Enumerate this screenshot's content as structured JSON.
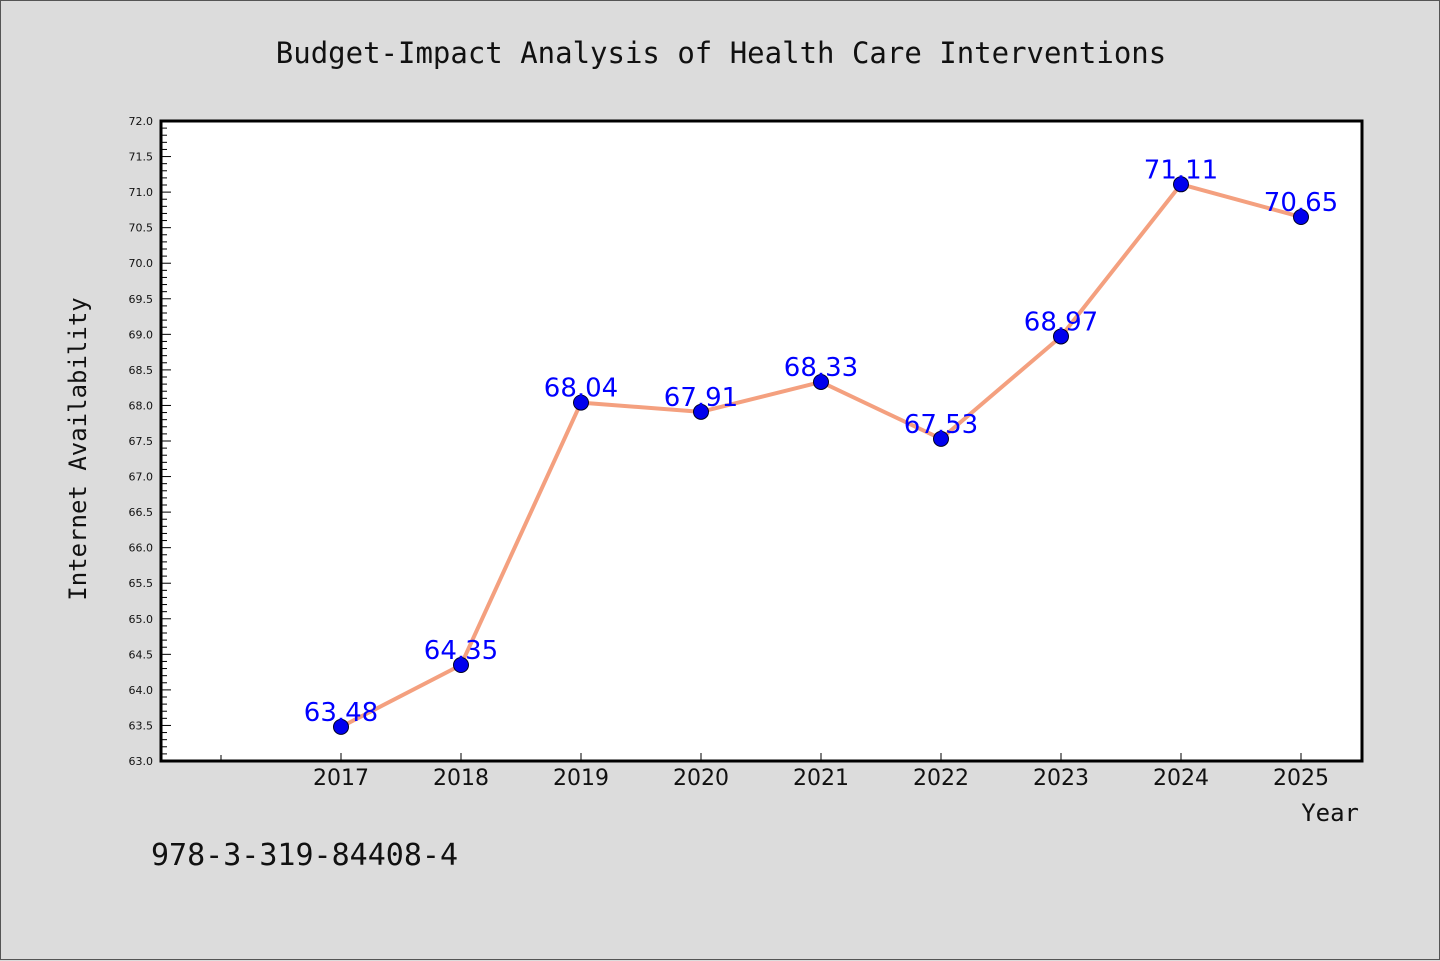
{
  "chart_data": {
    "type": "line",
    "title": "Budget-Impact Analysis of Health Care Interventions",
    "xlabel": "Year",
    "ylabel": "Internet Availability",
    "categories": [
      "2017",
      "2018",
      "2019",
      "2020",
      "2021",
      "2022",
      "2023",
      "2024",
      "2025"
    ],
    "series": [
      {
        "values": [
          63.48,
          64.35,
          68.04,
          67.91,
          68.33,
          67.53,
          68.97,
          71.11,
          70.65
        ],
        "labels": [
          "63.48",
          "64.35",
          "68.04",
          "67.91",
          "68.33",
          "67.53",
          "68.97",
          "71.11",
          "70.65"
        ]
      }
    ],
    "ylim": [
      63.0,
      72.0
    ],
    "ytick_labels": [
      "63.0",
      "63.5",
      "64.0",
      "64.5",
      "65.0",
      "65.5",
      "66.0",
      "66.5",
      "67.0",
      "67.5",
      "68.0",
      "68.5",
      "69.0",
      "69.5",
      "70.0",
      "70.5",
      "71.0",
      "71.5",
      "72.0"
    ],
    "grid": false,
    "legend": "none",
    "colors": {
      "line": "#f4a07f",
      "marker": "#0000ee",
      "data_label": "#0000ff",
      "background": "#dcdcdc",
      "plot_area": "#ffffff"
    }
  },
  "footer": {
    "isbn": "978-3-319-84408-4"
  }
}
